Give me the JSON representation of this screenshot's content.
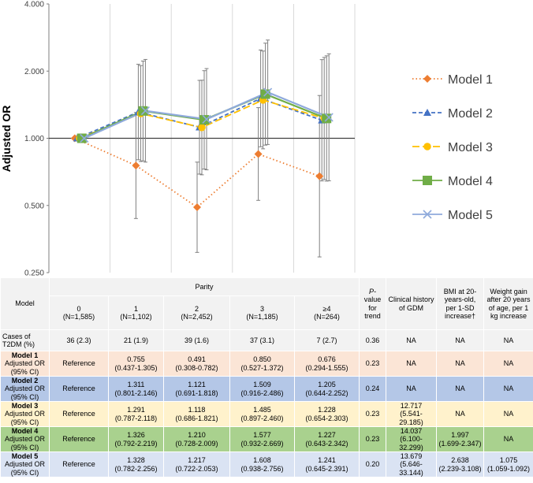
{
  "chart_data": {
    "type": "line",
    "ylabel": "Adjusted OR",
    "yscale": "log",
    "ylim": [
      0.25,
      4.0
    ],
    "yticks": [
      "0.250",
      "0.500",
      "1.000",
      "2.000",
      "4.000"
    ],
    "yticks_values": [
      0.25,
      0.5,
      1,
      2,
      4
    ],
    "categories": [
      "0",
      "1",
      "2",
      "3",
      "≥4"
    ],
    "series": [
      {
        "name": "Model 1",
        "color": "#ed7d31",
        "marker": "diamond",
        "dash": "dot",
        "values": [
          1.0,
          0.755,
          0.491,
          0.85,
          0.676
        ],
        "lower": [
          1.0,
          0.437,
          0.308,
          0.527,
          0.294
        ],
        "upper": [
          1.0,
          1.305,
          0.782,
          1.372,
          1.555
        ]
      },
      {
        "name": "Model 2",
        "color": "#4472c4",
        "marker": "triangle",
        "dash": "dash",
        "values": [
          1.0,
          1.311,
          1.121,
          1.509,
          1.205
        ],
        "lower": [
          1.0,
          0.801,
          0.691,
          0.916,
          0.644
        ],
        "upper": [
          1.0,
          2.146,
          1.818,
          2.486,
          2.252
        ]
      },
      {
        "name": "Model 3",
        "color": "#ffc000",
        "marker": "circle",
        "dash": "longdash",
        "values": [
          1.0,
          1.291,
          1.118,
          1.485,
          1.228
        ],
        "lower": [
          1.0,
          0.787,
          0.686,
          0.897,
          0.654
        ],
        "upper": [
          1.0,
          2.118,
          1.821,
          2.46,
          2.303
        ]
      },
      {
        "name": "Model 4",
        "color": "#70ad47",
        "marker": "square",
        "dash": "solid",
        "values": [
          1.0,
          1.326,
          1.21,
          1.577,
          1.227
        ],
        "lower": [
          1.0,
          0.792,
          0.728,
          0.932,
          0.643
        ],
        "upper": [
          1.0,
          2.219,
          2.009,
          2.669,
          2.342
        ]
      },
      {
        "name": "Model 5",
        "color": "#8faadc",
        "marker": "x",
        "dash": "solid",
        "values": [
          1.0,
          1.328,
          1.217,
          1.608,
          1.241
        ],
        "lower": [
          1.0,
          0.782,
          0.722,
          0.938,
          0.645
        ],
        "upper": [
          1.0,
          2.256,
          2.053,
          2.756,
          2.391
        ]
      }
    ]
  },
  "table": {
    "model_header": "Model",
    "parity_header": "Parity",
    "parity_cols": [
      {
        "k": "0",
        "n": "(N=1,585)"
      },
      {
        "k": "1",
        "n": "(N=1,102)"
      },
      {
        "k": "2",
        "n": "(N=2,452)"
      },
      {
        "k": "3",
        "n": "(N=1,185)"
      },
      {
        "k": "≥4",
        "n": "(N=264)"
      }
    ],
    "p_header_italic": "P-",
    "p_header_rest": "value for trend",
    "gdm_header": "Clinical history of GDM",
    "bmi_header": "BMI at 20-years-old, per 1-SD increase†",
    "wg_header": "Weight gain after 20 years of age, per 1 kg increase",
    "cases": {
      "label": "Cases of T2DM (%)",
      "cells": [
        "36 (2.3)",
        "21 (1.9)",
        "39 (1.6)",
        "37 (3.1)",
        "7 (2.7)",
        "0.36",
        "NA",
        "NA",
        "NA"
      ]
    },
    "models": [
      {
        "name": "Model 1",
        "sub": "Adjusted OR (95% CI)",
        "cells": [
          [
            "Reference",
            ""
          ],
          [
            "0.755",
            "(0.437-1.305)"
          ],
          [
            "0.491",
            "(0.308-0.782)"
          ],
          [
            "0.850",
            "(0.527-1.372)"
          ],
          [
            "0.676",
            "(0.294-1.555)"
          ],
          [
            "0.23",
            ""
          ],
          [
            "NA",
            ""
          ],
          [
            "NA",
            ""
          ],
          [
            "NA",
            ""
          ]
        ]
      },
      {
        "name": "Model 2",
        "sub": "Adjusted OR (95% CI)",
        "cells": [
          [
            "Reference",
            ""
          ],
          [
            "1.311",
            "(0.801-2.146)"
          ],
          [
            "1.121",
            "(0.691-1.818)"
          ],
          [
            "1.509",
            "(0.916-2.486)"
          ],
          [
            "1.205",
            "(0.644-2.252)"
          ],
          [
            "0.24",
            ""
          ],
          [
            "NA",
            ""
          ],
          [
            "NA",
            ""
          ],
          [
            "NA",
            ""
          ]
        ]
      },
      {
        "name": "Model 3",
        "sub": "Adjusted OR (95% CI)",
        "cells": [
          [
            "Reference",
            ""
          ],
          [
            "1.291",
            "(0.787-2.118)"
          ],
          [
            "1.118",
            "(0.686-1.821)"
          ],
          [
            "1.485",
            "(0.897-2.460)"
          ],
          [
            "1.228",
            "(0.654-2.303)"
          ],
          [
            "0.23",
            ""
          ],
          [
            "12.717",
            "(5.541-29.185)"
          ],
          [
            "NA",
            ""
          ],
          [
            "NA",
            ""
          ]
        ]
      },
      {
        "name": "Model 4",
        "sub": "Adjusted OR (95% CI)",
        "cells": [
          [
            "Reference",
            ""
          ],
          [
            "1.326",
            "(0.792-2.219)"
          ],
          [
            "1.210",
            "(0.728-2.009)"
          ],
          [
            "1.577",
            "(0.932-2.669)"
          ],
          [
            "1.227",
            "(0.643-2.342)"
          ],
          [
            "0.23",
            ""
          ],
          [
            "14.037",
            "(6.100-32.299)"
          ],
          [
            "1.997",
            "(1.699-2.347)"
          ],
          [
            "NA",
            ""
          ]
        ]
      },
      {
        "name": "Model 5",
        "sub": "Adjusted OR (95% CI)",
        "cells": [
          [
            "Reference",
            ""
          ],
          [
            "1.328",
            "(0.782-2.256)"
          ],
          [
            "1.217",
            "(0.722-2.053)"
          ],
          [
            "1.608",
            "(0.938-2.756)"
          ],
          [
            "1.241",
            "(0.645-2.391)"
          ],
          [
            "0.20",
            ""
          ],
          [
            "13.679",
            "(5.646-33.144)"
          ],
          [
            "2.638",
            "(2.239-3.108)"
          ],
          [
            "1.075",
            "(1.059-1.092)"
          ]
        ]
      }
    ]
  }
}
